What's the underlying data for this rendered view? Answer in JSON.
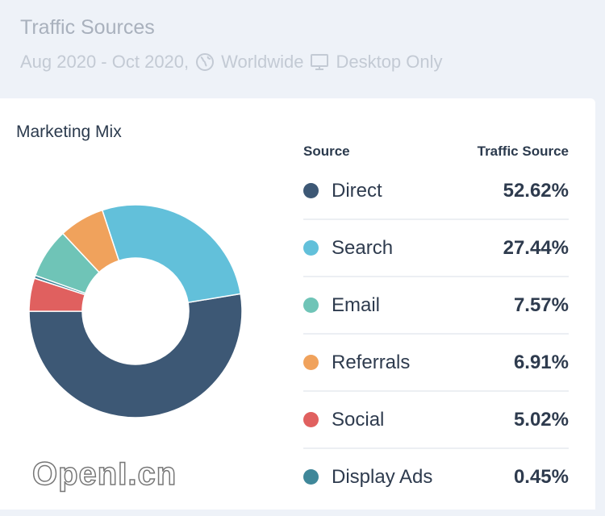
{
  "header": {
    "title": "Traffic Sources",
    "date_range": "Aug 2020 - Oct 2020,",
    "region": "Worldwide",
    "device": "Desktop Only",
    "region_icon": "globe-icon",
    "device_icon": "desktop-icon"
  },
  "card": {
    "title": "Marketing Mix"
  },
  "table": {
    "col_source": "Source",
    "col_traffic": "Traffic Source"
  },
  "chart_data": {
    "type": "pie",
    "variant": "donut",
    "title": "Marketing Mix",
    "categories": [
      "Direct",
      "Search",
      "Email",
      "Referrals",
      "Social",
      "Display Ads"
    ],
    "values": [
      52.62,
      27.44,
      7.57,
      6.91,
      5.02,
      0.45
    ],
    "labels": [
      "52.62%",
      "27.44%",
      "7.57%",
      "6.91%",
      "5.02%",
      "0.45%"
    ],
    "colors": [
      "#3d5875",
      "#62c0da",
      "#6fc4b7",
      "#f0a25c",
      "#e0605f",
      "#3f8799"
    ],
    "slice_order_counterclockwise_from_left": [
      "Direct",
      "Search",
      "Referrals",
      "Email",
      "Display Ads",
      "Social"
    ]
  },
  "watermark": "OpenI.cn"
}
